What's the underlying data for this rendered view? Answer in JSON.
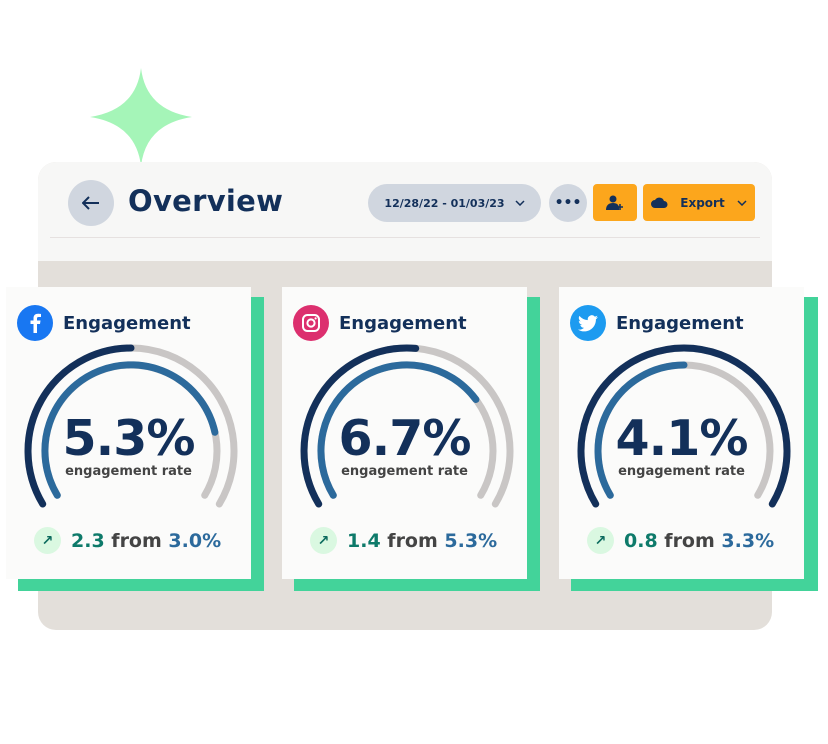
{
  "header": {
    "title": "Overview",
    "date_range": "12/28/22 - 01/03/23",
    "export_label": "Export",
    "more_label": "•••"
  },
  "colors": {
    "accent": "#fca61c",
    "navy": "#13305a",
    "blue": "#2c6a9c",
    "green": "#43d39a",
    "track": "#c9c6c5"
  },
  "cards": [
    {
      "platform": "facebook",
      "icon": "facebook-icon",
      "badge_color": "#1877f2",
      "title": "Engagement",
      "value": "5.3%",
      "label": "engagement rate",
      "delta": "2.3",
      "from_word": "from",
      "base": "3.0%",
      "outer_fill": 0.5,
      "inner_fill": 0.82
    },
    {
      "platform": "instagram",
      "icon": "instagram-icon",
      "badge_color": "#dc2f6e",
      "title": "Engagement",
      "value": "6.7%",
      "label": "engagement rate",
      "delta": "1.4",
      "from_word": "from",
      "base": "5.3%",
      "outer_fill": 0.52,
      "inner_fill": 0.72
    },
    {
      "platform": "twitter",
      "icon": "twitter-icon",
      "badge_color": "#1d9bf0",
      "title": "Engagement",
      "value": "4.1%",
      "label": "engagement rate",
      "delta": "0.8",
      "from_word": "from",
      "base": "3.3%",
      "outer_fill": 1.0,
      "inner_fill": 0.5
    }
  ]
}
